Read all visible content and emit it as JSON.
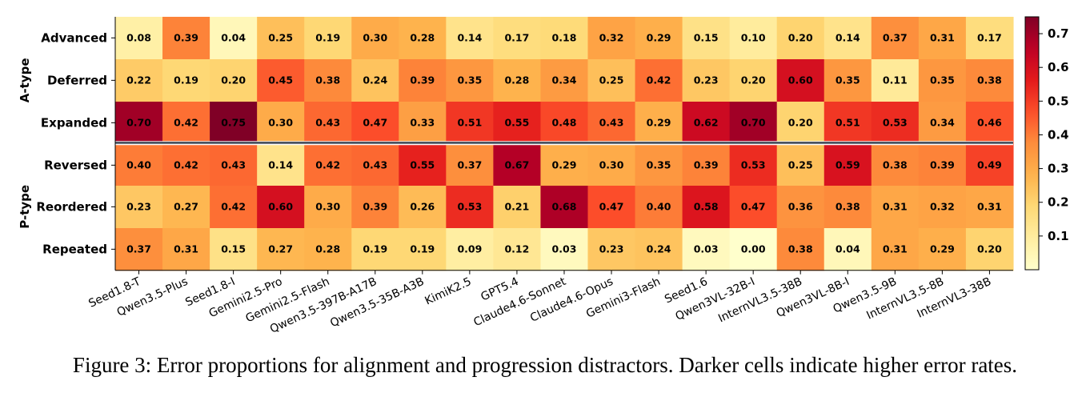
{
  "caption": "Figure 3: Error proportions for alignment and progression distractors. Darker cells indicate higher error rates.",
  "chart_data": {
    "type": "heatmap",
    "title": "",
    "xlabel": "",
    "ylabel": "",
    "x_categories": [
      "Seed1.8-T",
      "Qwen3.5-Plus",
      "Seed1.8-I",
      "Gemini2.5-Pro",
      "Gemini2.5-Flash",
      "Qwen3.5-397B-A17B",
      "Qwen3.5-35B-A3B",
      "KimiK2.5",
      "GPT5.4",
      "Claude4.6-Sonnet",
      "Claude4.6-Opus",
      "Gemini3-Flash",
      "Seed1.6",
      "Qwen3VL-32B-I",
      "InternVL3.5-38B",
      "Qwen3VL-8B-I",
      "Qwen3.5-9B",
      "InternVL3.5-8B",
      "InternVL3-38B"
    ],
    "groups": [
      {
        "name": "A-type",
        "rows": [
          "Advanced",
          "Deferred",
          "Expanded"
        ]
      },
      {
        "name": "P-type",
        "rows": [
          "Reversed",
          "Reordered",
          "Repeated"
        ]
      }
    ],
    "y_categories": [
      "Advanced",
      "Deferred",
      "Expanded",
      "Reversed",
      "Reordered",
      "Repeated"
    ],
    "values": [
      [
        0.08,
        0.39,
        0.04,
        0.25,
        0.19,
        0.3,
        0.28,
        0.14,
        0.17,
        0.18,
        0.32,
        0.29,
        0.15,
        0.1,
        0.2,
        0.14,
        0.37,
        0.31,
        0.17
      ],
      [
        0.22,
        0.19,
        0.2,
        0.45,
        0.38,
        0.24,
        0.39,
        0.35,
        0.28,
        0.34,
        0.25,
        0.42,
        0.23,
        0.2,
        0.6,
        0.35,
        0.11,
        0.35,
        0.38
      ],
      [
        0.7,
        0.42,
        0.75,
        0.3,
        0.43,
        0.47,
        0.33,
        0.51,
        0.55,
        0.48,
        0.43,
        0.29,
        0.62,
        0.7,
        0.2,
        0.51,
        0.53,
        0.34,
        0.46
      ],
      [
        0.4,
        0.42,
        0.43,
        0.14,
        0.42,
        0.43,
        0.55,
        0.37,
        0.67,
        0.29,
        0.3,
        0.35,
        0.39,
        0.53,
        0.25,
        0.59,
        0.38,
        0.39,
        0.49
      ],
      [
        0.23,
        0.27,
        0.42,
        0.6,
        0.3,
        0.39,
        0.26,
        0.53,
        0.21,
        0.68,
        0.47,
        0.4,
        0.58,
        0.47,
        0.36,
        0.38,
        0.31,
        0.32,
        0.31
      ],
      [
        0.37,
        0.31,
        0.15,
        0.27,
        0.28,
        0.19,
        0.19,
        0.09,
        0.12,
        0.03,
        0.23,
        0.24,
        0.03,
        0.0,
        0.38,
        0.04,
        0.31,
        0.29,
        0.2
      ]
    ],
    "colormap": "YlOrRd",
    "colorbar": {
      "range": [
        0.0,
        0.75
      ],
      "ticks": [
        "0.1",
        "0.2",
        "0.3",
        "0.4",
        "0.5",
        "0.6",
        "0.7"
      ]
    },
    "group_separator_color": "#4a5360"
  }
}
